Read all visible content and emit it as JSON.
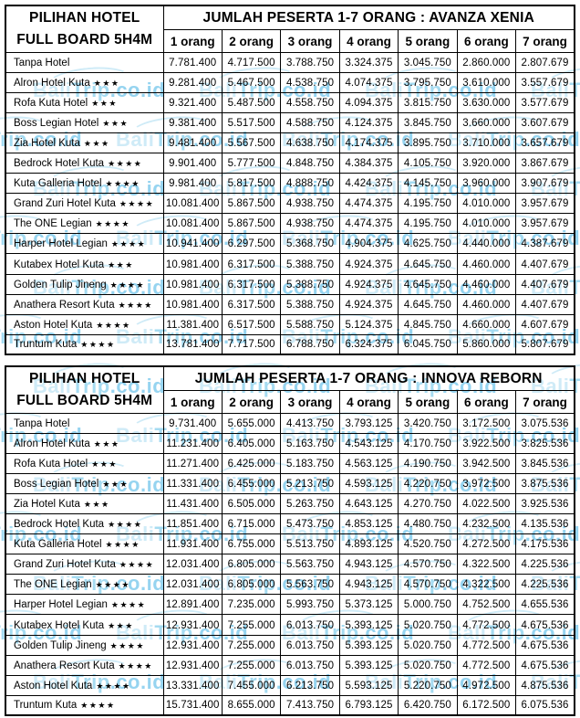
{
  "corner_header": {
    "line1": "PILIHAN HOTEL",
    "line2": "FULL BOARD 5H4M"
  },
  "columns": [
    "1 orang",
    "2 orang",
    "3 orang",
    "4 orang",
    "5 orang",
    "6 orang",
    "7 orang"
  ],
  "star_glyph": "★",
  "tables": [
    {
      "title": "JUMLAH PESERTA 1-7 ORANG : AVANZA XENIA",
      "rows": [
        {
          "name": "Tanpa Hotel",
          "stars": 0,
          "prices": [
            "7.781.400",
            "4.717.500",
            "3.788.750",
            "3.324.375",
            "3.045.750",
            "2.860.000",
            "2.807.679"
          ]
        },
        {
          "name": "Alron Hotel Kuta",
          "stars": 3,
          "prices": [
            "9.281.400",
            "5.467.500",
            "4.538.750",
            "4.074.375",
            "3.795.750",
            "3.610.000",
            "3.557.679"
          ]
        },
        {
          "name": "Rofa Kuta Hotel",
          "stars": 3,
          "prices": [
            "9.321.400",
            "5.487.500",
            "4.558.750",
            "4.094.375",
            "3.815.750",
            "3.630.000",
            "3.577.679"
          ]
        },
        {
          "name": "Boss Legian Hotel",
          "stars": 3,
          "prices": [
            "9.381.400",
            "5.517.500",
            "4.588.750",
            "4.124.375",
            "3.845.750",
            "3.660.000",
            "3.607.679"
          ]
        },
        {
          "name": "Zia Hotel Kuta",
          "stars": 3,
          "prices": [
            "9.481.400",
            "5.567.500",
            "4.638.750",
            "4.174.375",
            "3.895.750",
            "3.710.000",
            "3.657.679"
          ]
        },
        {
          "name": "Bedrock Hotel Kuta",
          "stars": 4,
          "prices": [
            "9.901.400",
            "5.777.500",
            "4.848.750",
            "4.384.375",
            "4.105.750",
            "3.920.000",
            "3.867.679"
          ]
        },
        {
          "name": "Kuta Galleria Hotel",
          "stars": 4,
          "prices": [
            "9.981.400",
            "5.817.500",
            "4.888.750",
            "4.424.375",
            "4.145.750",
            "3.960.000",
            "3.907.679"
          ]
        },
        {
          "name": "Grand Zuri Hotel Kuta",
          "stars": 4,
          "prices": [
            "10.081.400",
            "5.867.500",
            "4.938.750",
            "4.474.375",
            "4.195.750",
            "4.010.000",
            "3.957.679"
          ]
        },
        {
          "name": "The ONE Legian",
          "stars": 4,
          "prices": [
            "10.081.400",
            "5.867.500",
            "4.938.750",
            "4.474.375",
            "4.195.750",
            "4.010.000",
            "3.957.679"
          ]
        },
        {
          "name": "Harper Hotel Legian",
          "stars": 4,
          "prices": [
            "10.941.400",
            "6.297.500",
            "5.368.750",
            "4.904.375",
            "4.625.750",
            "4.440.000",
            "4.387.679"
          ]
        },
        {
          "name": "Kutabex Hotel Kuta",
          "stars": 3,
          "prices": [
            "10.981.400",
            "6.317.500",
            "5.388.750",
            "4.924.375",
            "4.645.750",
            "4.460.000",
            "4.407.679"
          ]
        },
        {
          "name": "Golden Tulip Jineng",
          "stars": 4,
          "prices": [
            "10.981.400",
            "6.317.500",
            "5.388.750",
            "4.924.375",
            "4.645.750",
            "4.460.000",
            "4.407.679"
          ]
        },
        {
          "name": "Anathera Resort Kuta",
          "stars": 4,
          "prices": [
            "10.981.400",
            "6.317.500",
            "5.388.750",
            "4.924.375",
            "4.645.750",
            "4.460.000",
            "4.407.679"
          ]
        },
        {
          "name": "Aston Hotel Kuta",
          "stars": 4,
          "prices": [
            "11.381.400",
            "6.517.500",
            "5.588.750",
            "5.124.375",
            "4.845.750",
            "4.660.000",
            "4.607.679"
          ]
        },
        {
          "name": "Truntum Kuta",
          "stars": 4,
          "prices": [
            "13.781.400",
            "7.717.500",
            "6.788.750",
            "6.324.375",
            "6.045.750",
            "5.860.000",
            "5.807.679"
          ]
        }
      ]
    },
    {
      "title": "JUMLAH PESERTA 1-7 ORANG : INNOVA REBORN",
      "rows": [
        {
          "name": "Tanpa Hotel",
          "stars": 0,
          "prices": [
            "9.731.400",
            "5.655.000",
            "4.413.750",
            "3.793.125",
            "3.420.750",
            "3.172.500",
            "3.075.536"
          ]
        },
        {
          "name": "Alron Hotel Kuta",
          "stars": 3,
          "prices": [
            "11.231.400",
            "6.405.000",
            "5.163.750",
            "4.543.125",
            "4.170.750",
            "3.922.500",
            "3.825.536"
          ]
        },
        {
          "name": "Rofa Kuta Hotel",
          "stars": 3,
          "prices": [
            "11.271.400",
            "6.425.000",
            "5.183.750",
            "4.563.125",
            "4.190.750",
            "3.942.500",
            "3.845.536"
          ]
        },
        {
          "name": "Boss Legian Hotel",
          "stars": 3,
          "prices": [
            "11.331.400",
            "6.455.000",
            "5.213.750",
            "4.593.125",
            "4.220.750",
            "3.972.500",
            "3.875.536"
          ]
        },
        {
          "name": "Zia Hotel Kuta",
          "stars": 3,
          "prices": [
            "11.431.400",
            "6.505.000",
            "5.263.750",
            "4.643.125",
            "4.270.750",
            "4.022.500",
            "3.925.536"
          ]
        },
        {
          "name": "Bedrock Hotel Kuta",
          "stars": 4,
          "prices": [
            "11.851.400",
            "6.715.000",
            "5.473.750",
            "4.853.125",
            "4.480.750",
            "4.232.500",
            "4.135.536"
          ]
        },
        {
          "name": "Kuta Galleria Hotel",
          "stars": 4,
          "prices": [
            "11.931.400",
            "6.755.000",
            "5.513.750",
            "4.893.125",
            "4.520.750",
            "4.272.500",
            "4.175.536"
          ]
        },
        {
          "name": "Grand Zuri Hotel Kuta",
          "stars": 4,
          "prices": [
            "12.031.400",
            "6.805.000",
            "5.563.750",
            "4.943.125",
            "4.570.750",
            "4.322.500",
            "4.225.536"
          ]
        },
        {
          "name": "The ONE Legian",
          "stars": 4,
          "prices": [
            "12.031.400",
            "6.805.000",
            "5.563.750",
            "4.943.125",
            "4.570.750",
            "4.322.500",
            "4.225.536"
          ]
        },
        {
          "name": "Harper Hotel Legian",
          "stars": 4,
          "prices": [
            "12.891.400",
            "7.235.000",
            "5.993.750",
            "5.373.125",
            "5.000.750",
            "4.752.500",
            "4.655.536"
          ]
        },
        {
          "name": "Kutabex Hotel Kuta",
          "stars": 3,
          "prices": [
            "12.931.400",
            "7.255.000",
            "6.013.750",
            "5.393.125",
            "5.020.750",
            "4.772.500",
            "4.675.536"
          ]
        },
        {
          "name": "Golden Tulip Jineng",
          "stars": 4,
          "prices": [
            "12.931.400",
            "7.255.000",
            "6.013.750",
            "5.393.125",
            "5.020.750",
            "4.772.500",
            "4.675.536"
          ]
        },
        {
          "name": "Anathera Resort Kuta",
          "stars": 4,
          "prices": [
            "12.931.400",
            "7.255.000",
            "6.013.750",
            "5.393.125",
            "5.020.750",
            "4.772.500",
            "4.675.536"
          ]
        },
        {
          "name": "Aston Hotel Kuta",
          "stars": 4,
          "prices": [
            "13.331.400",
            "7.455.000",
            "6.213.750",
            "5.593.125",
            "5.220.750",
            "4.972.500",
            "4.875.536"
          ]
        },
        {
          "name": "Truntum Kuta",
          "stars": 4,
          "prices": [
            "15.731.400",
            "8.655.000",
            "7.413.750",
            "6.793.125",
            "6.420.750",
            "6.172.500",
            "6.075.536"
          ]
        }
      ]
    }
  ],
  "watermark": {
    "brand_prefix": "Bali",
    "brand_mid": "Trip",
    "brand_suffix": ".co.id",
    "colors": {
      "bali": "#c3e6f5",
      "trip": "#8fd2ee",
      "suffix": "#7cc9ec"
    }
  }
}
